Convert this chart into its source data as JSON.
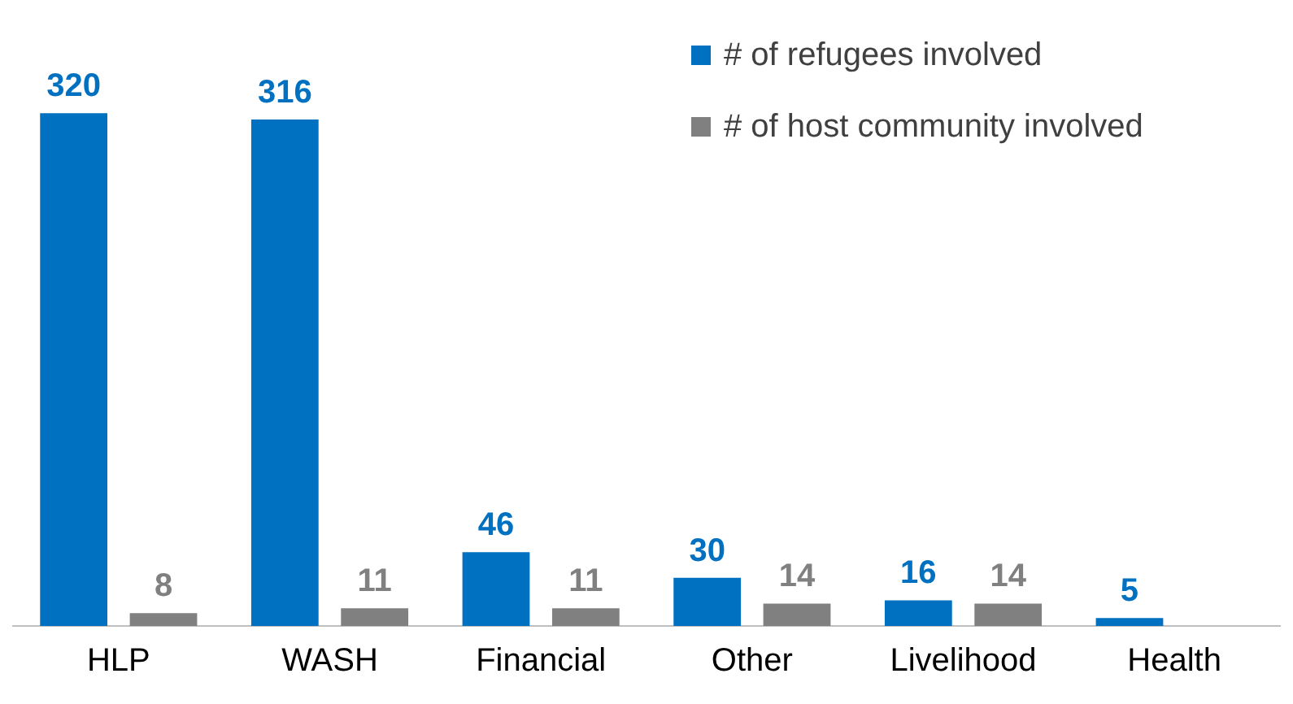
{
  "chart_data": {
    "type": "bar",
    "categories": [
      "HLP",
      "WASH",
      "Financial",
      "Other",
      "Livelihood",
      "Health"
    ],
    "series": [
      {
        "name": "# of refugees involved",
        "color": "#0070c0",
        "values": [
          320,
          316,
          46,
          30,
          16,
          5
        ]
      },
      {
        "name": "# of host community involved",
        "color": "#808080",
        "values": [
          8,
          11,
          11,
          14,
          14,
          null
        ]
      }
    ],
    "data_labels": true,
    "legend": "top right",
    "grid": false,
    "tick_labels": "x"
  }
}
